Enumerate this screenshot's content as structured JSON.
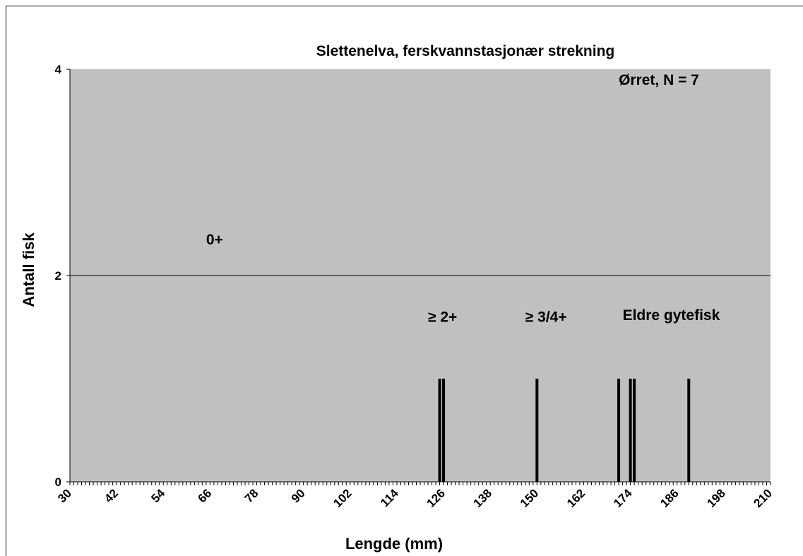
{
  "chart_data": {
    "type": "bar",
    "title": "Slettenelva, ferskvannstasjonær strekning",
    "xlabel": "Lengde (mm)",
    "ylabel": "Antall fisk",
    "xlim": [
      30,
      210
    ],
    "ylim": [
      0,
      4
    ],
    "x_tick_labels": [
      "30",
      "42",
      "54",
      "66",
      "78",
      "90",
      "102",
      "114",
      "126",
      "138",
      "150",
      "162",
      "174",
      "186",
      "198",
      "210"
    ],
    "y_tick_labels": [
      "0",
      "2",
      "4"
    ],
    "y_gridlines": [
      2
    ],
    "bars": [
      {
        "x": 125,
        "value": 1
      },
      {
        "x": 126,
        "value": 1
      },
      {
        "x": 150,
        "value": 1
      },
      {
        "x": 171,
        "value": 1
      },
      {
        "x": 174,
        "value": 1
      },
      {
        "x": 175,
        "value": 1
      },
      {
        "x": 189,
        "value": 1
      }
    ],
    "annotations": [
      {
        "text": "Ørret, N = 7",
        "x": 171,
        "y": 3.85
      },
      {
        "text": "0+",
        "x": 65,
        "y": 2.3
      },
      {
        "text": "≥ 2+",
        "x": 122,
        "y": 1.55
      },
      {
        "text": "≥ 3/4+",
        "x": 147,
        "y": 1.55
      },
      {
        "text": "Eldre gytefisk",
        "x": 172,
        "y": 1.57
      }
    ],
    "plot_background": "#c0c0c0",
    "bar_color": "#000000",
    "grid": true,
    "legend": "none"
  }
}
